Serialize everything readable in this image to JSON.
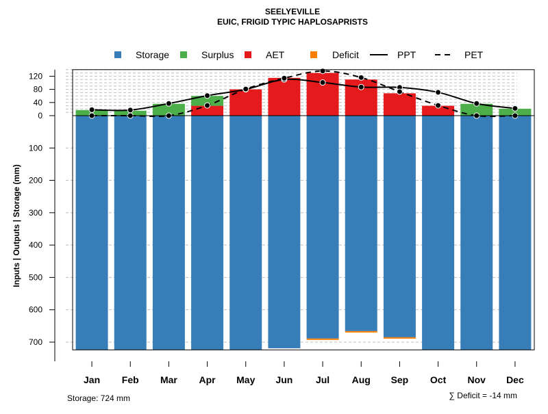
{
  "chart_data": {
    "type": "bar",
    "title": "SEELYEVILLE",
    "subtitle": "EUIC, FRIGID TYPIC HAPLOSAPRISTS",
    "ylabel": "Inputs | Outputs | Storage    (mm)",
    "categories": [
      "Jan",
      "Feb",
      "Mar",
      "Apr",
      "May",
      "Jun",
      "Jul",
      "Aug",
      "Sep",
      "Oct",
      "Nov",
      "Dec"
    ],
    "ylim": [
      -724,
      140
    ],
    "yticks_pos": [
      "0",
      "40",
      "80",
      "120"
    ],
    "yticks_neg": [
      "100",
      "200",
      "300",
      "400",
      "500",
      "600",
      "700"
    ],
    "ytick_values_pos": [
      0,
      40,
      80,
      120
    ],
    "ytick_values_neg": [
      100,
      200,
      300,
      400,
      500,
      600,
      700
    ],
    "grid_above": [
      10,
      20,
      30,
      40,
      50,
      60,
      70,
      80,
      90,
      100,
      110,
      120,
      130,
      140
    ],
    "grid_below": [
      100,
      200,
      300,
      400,
      500,
      600,
      700
    ],
    "storage_capacity": 724,
    "series": {
      "storage": [
        724,
        724,
        724,
        724,
        724,
        719,
        689,
        666,
        685,
        724,
        724,
        724
      ],
      "surplus": [
        17,
        15,
        36,
        60,
        0,
        0,
        0,
        0,
        0,
        0,
        36,
        21
      ],
      "aet": [
        0,
        0,
        0,
        30,
        80,
        115,
        130,
        110,
        68,
        30,
        0,
        0
      ],
      "deficit": [
        0,
        0,
        0,
        0,
        0,
        0,
        3,
        7,
        5,
        0,
        0,
        0
      ],
      "ppt": [
        18,
        17,
        37,
        61,
        80,
        110,
        101,
        87,
        86,
        71,
        37,
        22
      ],
      "pet": [
        0,
        0,
        0,
        31,
        81,
        114,
        136,
        116,
        73,
        31,
        0,
        0
      ]
    },
    "legend": [
      {
        "label": "Storage",
        "kind": "box",
        "color": "#377EB8"
      },
      {
        "label": "Surplus",
        "kind": "box",
        "color": "#4DAF4A"
      },
      {
        "label": "AET",
        "kind": "box",
        "color": "#E41A1C"
      },
      {
        "label": "Deficit",
        "kind": "box",
        "color": "#FF7F00"
      },
      {
        "label": "PPT",
        "kind": "line",
        "dash": "none"
      },
      {
        "label": "PET",
        "kind": "line",
        "dash": "dashed"
      }
    ],
    "colors": {
      "storage": "#377EB8",
      "surplus": "#4DAF4A",
      "aet": "#E41A1C",
      "deficit": "#FF7F00",
      "line": "#000000",
      "grid": "#BEBEBE"
    },
    "annotations": {
      "storage_note": "Storage: 724 mm",
      "deficit_note": "∑ Deficit = -14 mm"
    }
  }
}
